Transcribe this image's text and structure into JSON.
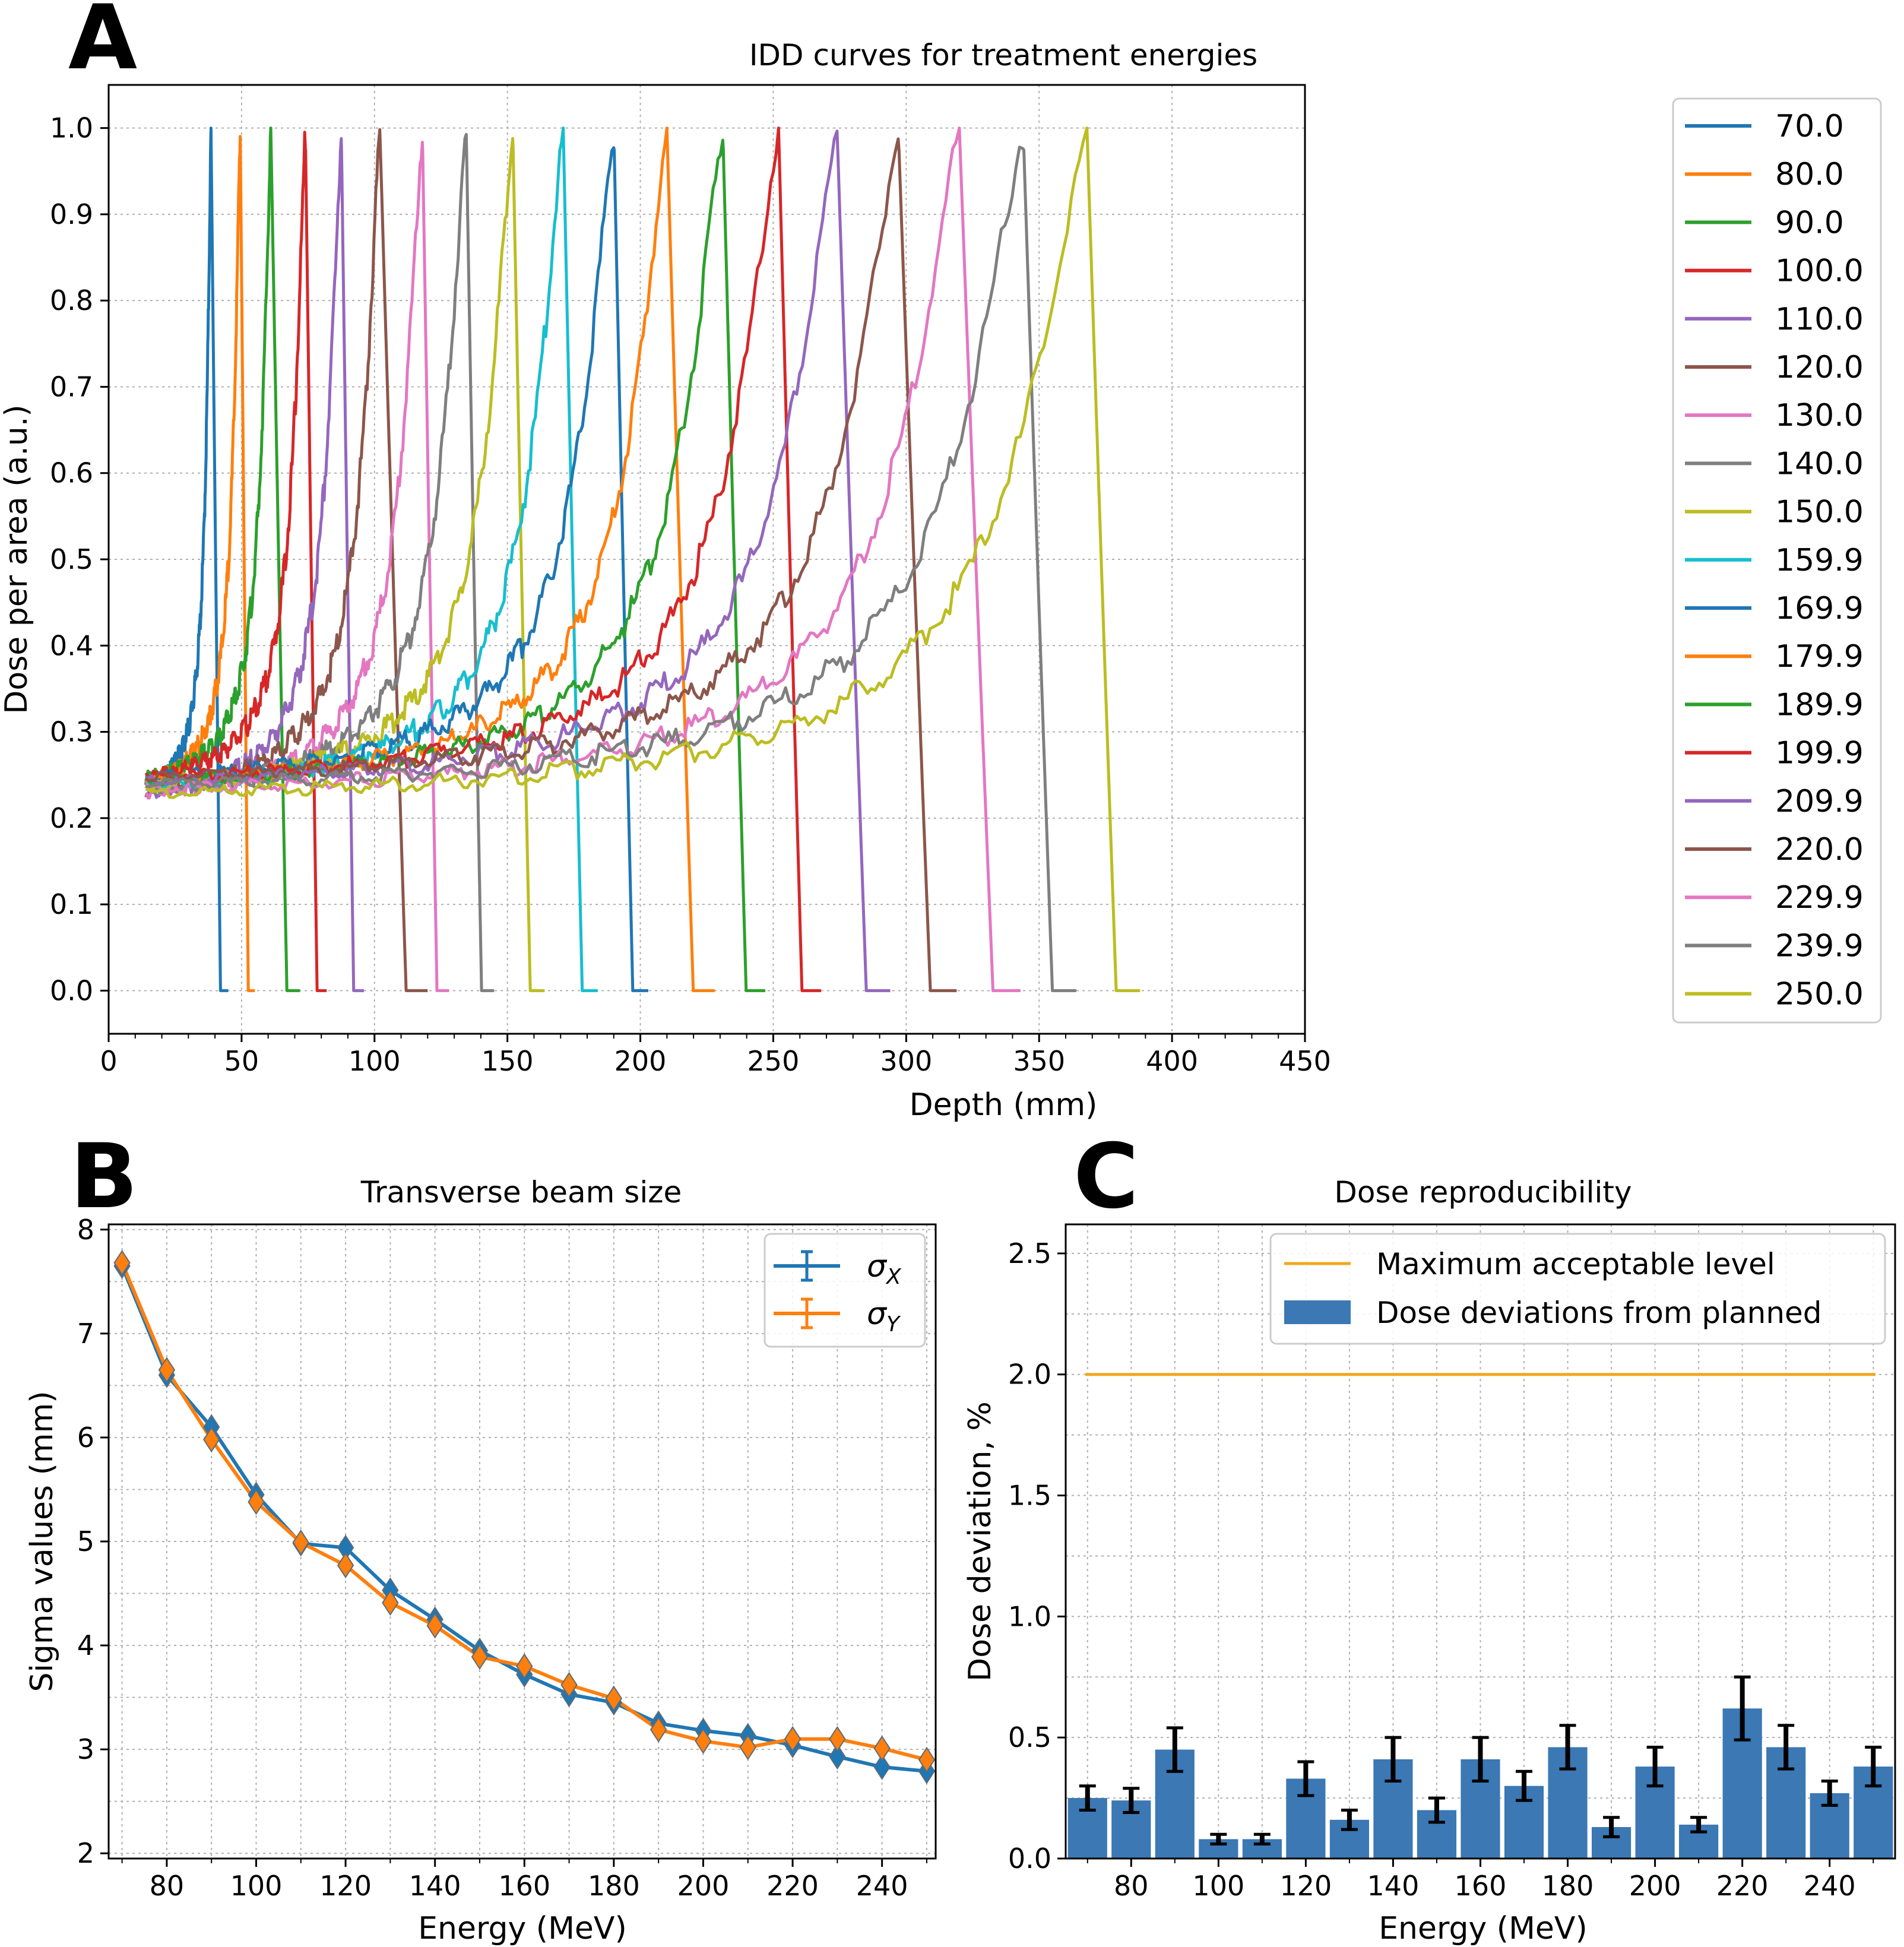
{
  "panels": {
    "a": {
      "letter": "A"
    },
    "b": {
      "letter": "B"
    },
    "c": {
      "letter": "C"
    }
  },
  "colors": {
    "tab10": [
      "#1f77b4",
      "#ff7f0e",
      "#2ca02c",
      "#d62728",
      "#9467bd",
      "#8c564b",
      "#e377c2",
      "#7f7f7f",
      "#bcbd22",
      "#17becf"
    ],
    "sigma_x": "#1f77b4",
    "sigma_y": "#ff7f0e",
    "bar": "#3b78b4",
    "limit": "#f0a81c"
  },
  "chart_data": [
    {
      "id": "A",
      "type": "line",
      "title": "IDD curves for treatment energies",
      "xlabel": "Depth (mm)",
      "ylabel": "Dose per area (a.u.)",
      "xlim": [
        0,
        450
      ],
      "ylim": [
        -0.05,
        1.05
      ],
      "xticks": [
        0,
        50,
        100,
        150,
        200,
        250,
        300,
        350,
        400,
        450
      ],
      "yticks": [
        0.0,
        0.1,
        0.2,
        0.3,
        0.4,
        0.5,
        0.6,
        0.7,
        0.8,
        0.9,
        1.0
      ],
      "ytick_labels": [
        "0.0",
        "0.1",
        "0.2",
        "0.3",
        "0.4",
        "0.5",
        "0.6",
        "0.7",
        "0.8",
        "0.9",
        "1.0"
      ],
      "grid": true,
      "legend_position": "top-right",
      "entrance_depth_mm": 14,
      "series": [
        {
          "name": "70.0",
          "peak_depth": 38.5,
          "entrance_dose": 0.22,
          "end_depth": 45
        },
        {
          "name": "80.0",
          "peak_depth": 49.5,
          "entrance_dose": 0.225,
          "end_depth": 55
        },
        {
          "name": "90.0",
          "peak_depth": 61,
          "entrance_dose": 0.23,
          "end_depth": 72
        },
        {
          "name": "100.0",
          "peak_depth": 74,
          "entrance_dose": 0.23,
          "end_depth": 82
        },
        {
          "name": "110.0",
          "peak_depth": 87.5,
          "entrance_dose": 0.21,
          "end_depth": 96
        },
        {
          "name": "120.0",
          "peak_depth": 102,
          "entrance_dose": 0.215,
          "end_depth": 120
        },
        {
          "name": "130.0",
          "peak_depth": 118,
          "entrance_dose": 0.21,
          "end_depth": 128
        },
        {
          "name": "140.0",
          "peak_depth": 134.5,
          "entrance_dose": 0.215,
          "end_depth": 145
        },
        {
          "name": "150.0",
          "peak_depth": 152,
          "entrance_dose": 0.22,
          "end_depth": 164
        },
        {
          "name": "159.9",
          "peak_depth": 171,
          "entrance_dose": 0.22,
          "end_depth": 184
        },
        {
          "name": "169.9",
          "peak_depth": 190,
          "entrance_dose": 0.23,
          "end_depth": 203
        },
        {
          "name": "179.9",
          "peak_depth": 210,
          "entrance_dose": 0.225,
          "end_depth": 228
        },
        {
          "name": "189.9",
          "peak_depth": 231,
          "entrance_dose": 0.225,
          "end_depth": 247
        },
        {
          "name": "199.9",
          "peak_depth": 252,
          "entrance_dose": 0.23,
          "end_depth": 268
        },
        {
          "name": "209.9",
          "peak_depth": 274,
          "entrance_dose": 0.225,
          "end_depth": 294
        },
        {
          "name": "220.0",
          "peak_depth": 297,
          "entrance_dose": 0.23,
          "end_depth": 319
        },
        {
          "name": "229.9",
          "peak_depth": 320,
          "entrance_dose": 0.215,
          "end_depth": 343
        },
        {
          "name": "239.9",
          "peak_depth": 344,
          "entrance_dose": 0.22,
          "end_depth": 364
        },
        {
          "name": "250.0",
          "peak_depth": 368,
          "entrance_dose": 0.21,
          "end_depth": 388
        }
      ]
    },
    {
      "id": "B",
      "type": "line",
      "title": "Transverse beam size",
      "xlabel": "Energy (MeV)",
      "ylabel": "Sigma values (mm)",
      "xlim": [
        67,
        252
      ],
      "ylim": [
        1.95,
        8.05
      ],
      "xticks": [
        80,
        100,
        120,
        140,
        160,
        180,
        200,
        220,
        240
      ],
      "yticks": [
        2,
        3,
        4,
        5,
        6,
        7,
        8
      ],
      "grid": true,
      "legend_position": "top-right",
      "categories": [
        70,
        80,
        90,
        100,
        110,
        120,
        130,
        140,
        150,
        160,
        170,
        180,
        190,
        200,
        210,
        220,
        230,
        240,
        250
      ],
      "series": [
        {
          "name": "σX",
          "label_main": "σ",
          "label_sub": "X",
          "values": [
            7.65,
            6.6,
            6.1,
            5.45,
            4.98,
            4.94,
            4.53,
            4.25,
            3.95,
            3.72,
            3.53,
            3.45,
            3.25,
            3.18,
            3.13,
            3.04,
            2.93,
            2.83,
            2.79
          ]
        },
        {
          "name": "σY",
          "label_main": "σ",
          "label_sub": "Y",
          "values": [
            7.68,
            6.65,
            5.98,
            5.38,
            4.99,
            4.77,
            4.41,
            4.19,
            3.89,
            3.8,
            3.62,
            3.49,
            3.19,
            3.08,
            3.02,
            3.1,
            3.1,
            3.01,
            2.9
          ]
        }
      ]
    },
    {
      "id": "C",
      "type": "bar",
      "title": "Dose reproducibility",
      "xlabel": "Energy (MeV)",
      "ylabel": "Dose deviation, %",
      "xlim": [
        65,
        255
      ],
      "ylim": [
        0,
        2.62
      ],
      "xticks": [
        80,
        100,
        120,
        140,
        160,
        180,
        200,
        220,
        240
      ],
      "yticks": [
        0.0,
        0.5,
        1.0,
        1.5,
        2.0,
        2.5
      ],
      "ytick_labels": [
        "0.0",
        "0.5",
        "1.0",
        "1.5",
        "2.0",
        "2.5"
      ],
      "grid": true,
      "legend_position": "top-right",
      "legend": [
        "Maximum acceptable level",
        "Dose deviations from planned"
      ],
      "threshold": 2.0,
      "categories": [
        70,
        80,
        90,
        100,
        110,
        120,
        130,
        140,
        150,
        160,
        170,
        180,
        190,
        200,
        210,
        220,
        230,
        240,
        250
      ],
      "values": [
        0.25,
        0.24,
        0.45,
        0.08,
        0.08,
        0.33,
        0.16,
        0.41,
        0.2,
        0.41,
        0.3,
        0.46,
        0.13,
        0.38,
        0.14,
        0.62,
        0.46,
        0.27,
        0.38
      ],
      "errors": [
        0.05,
        0.05,
        0.09,
        0.02,
        0.02,
        0.07,
        0.04,
        0.09,
        0.05,
        0.09,
        0.06,
        0.09,
        0.04,
        0.08,
        0.03,
        0.13,
        0.09,
        0.05,
        0.08
      ]
    }
  ]
}
